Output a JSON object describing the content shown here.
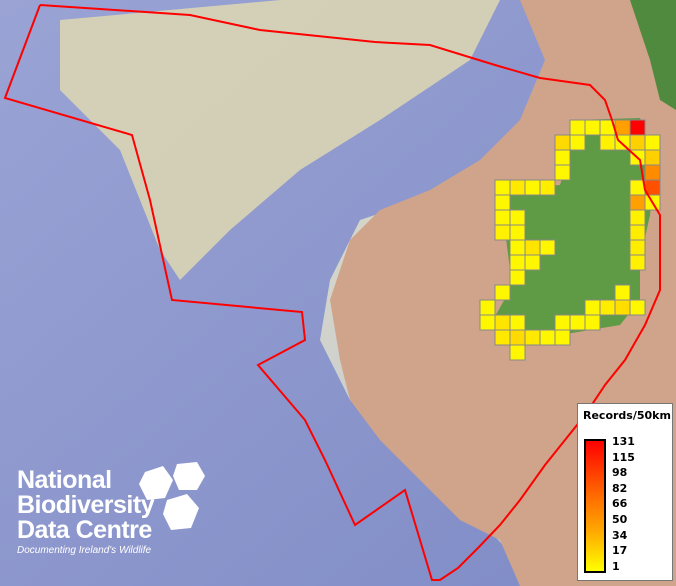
{
  "map": {
    "colors": {
      "sea_deep": "#8c96cc",
      "sea_shelf": "#c9ccd6",
      "shelf_sand": "#e0dcb4",
      "land_bg": "#d0a48a",
      "land_green": "#5f9a45",
      "boundary": "#ff0000",
      "cell_border": "#888888"
    },
    "legend": {
      "title": "Records/50km",
      "ticks": [
        "131",
        "115",
        "98",
        "82",
        "66",
        "50",
        "34",
        "17",
        "1"
      ],
      "colors": [
        "#ff0000",
        "#ffff00"
      ]
    },
    "logo": {
      "lines": [
        "National",
        "Biodiversity",
        "Data Centre"
      ],
      "tagline": "Documenting Ireland's Wildlife"
    }
  },
  "chart_data": {
    "type": "heatmap",
    "title": "",
    "units": "Records/50km",
    "range": [
      1,
      131
    ],
    "grid": [
      [
        null,
        null,
        null,
        null,
        null,
        null,
        5,
        5,
        5,
        50,
        131,
        null
      ],
      [
        null,
        null,
        null,
        null,
        null,
        20,
        5,
        null,
        8,
        5,
        25,
        5
      ],
      [
        null,
        null,
        null,
        null,
        null,
        5,
        null,
        null,
        null,
        null,
        5,
        25
      ],
      [
        null,
        null,
        null,
        null,
        null,
        5,
        null,
        null,
        null,
        null,
        null,
        60
      ],
      [
        null,
        5,
        12,
        5,
        10,
        null,
        null,
        null,
        null,
        null,
        5,
        90
      ],
      [
        null,
        5,
        null,
        null,
        null,
        null,
        null,
        null,
        null,
        null,
        50,
        5
      ],
      [
        null,
        5,
        5,
        null,
        null,
        null,
        null,
        null,
        null,
        null,
        8,
        null
      ],
      [
        null,
        8,
        5,
        null,
        null,
        null,
        null,
        null,
        null,
        null,
        10,
        null
      ],
      [
        null,
        null,
        5,
        15,
        5,
        null,
        null,
        null,
        null,
        null,
        10,
        null
      ],
      [
        null,
        null,
        5,
        5,
        null,
        null,
        null,
        null,
        null,
        null,
        8,
        null
      ],
      [
        null,
        null,
        5,
        null,
        null,
        null,
        null,
        null,
        null,
        null,
        null,
        null
      ],
      [
        null,
        5,
        null,
        null,
        null,
        null,
        null,
        null,
        null,
        5,
        null,
        null
      ],
      [
        5,
        null,
        null,
        null,
        null,
        null,
        null,
        5,
        10,
        18,
        5,
        null
      ],
      [
        5,
        15,
        5,
        null,
        null,
        5,
        5,
        5,
        null,
        null,
        null,
        null
      ],
      [
        null,
        12,
        20,
        12,
        5,
        5,
        null,
        null,
        null,
        null,
        null,
        null
      ],
      [
        null,
        null,
        5,
        null,
        null,
        null,
        null,
        null,
        null,
        null,
        null,
        null
      ]
    ]
  }
}
